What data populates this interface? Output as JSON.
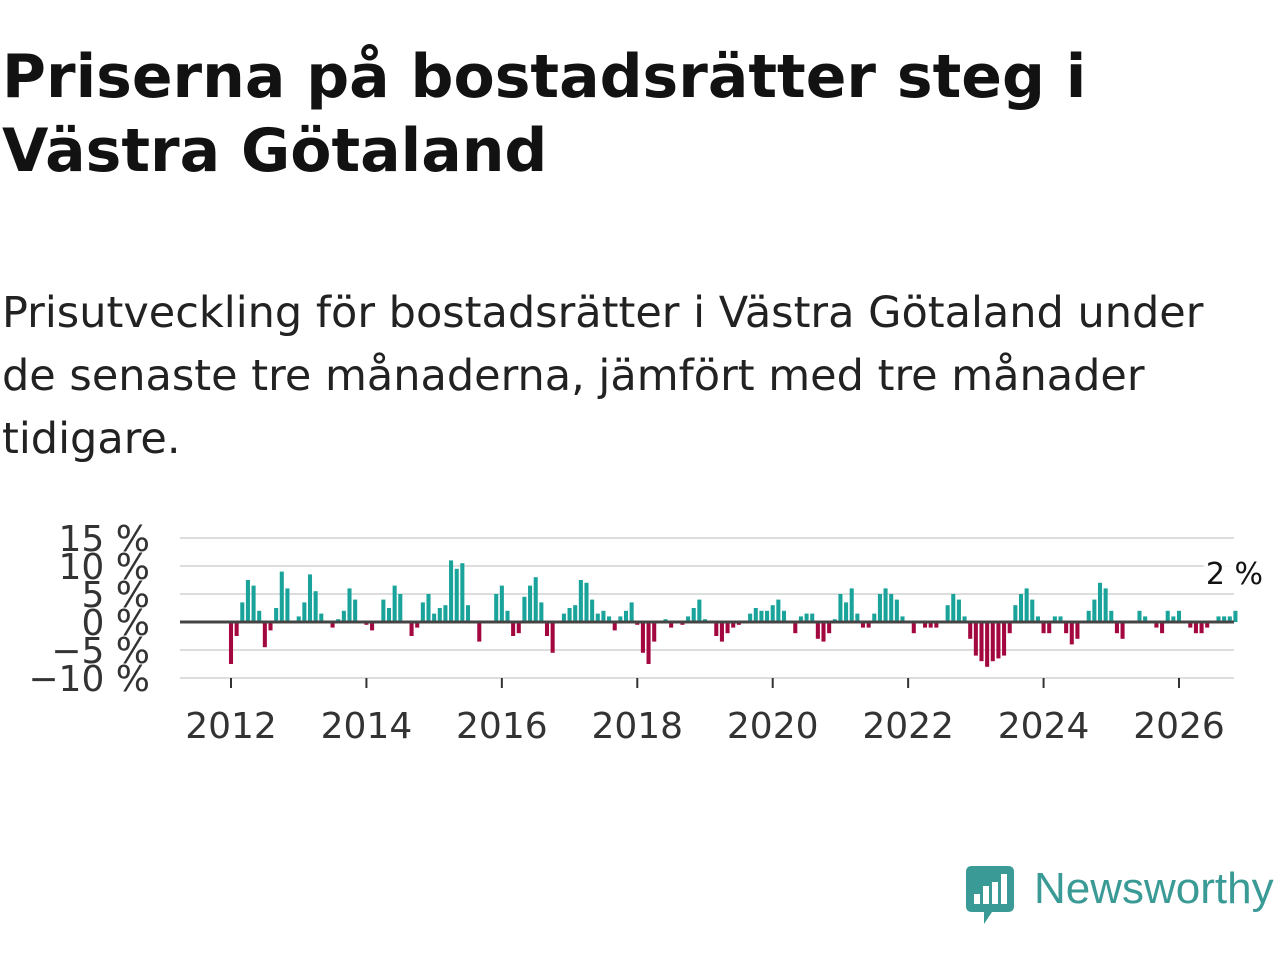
{
  "title": "Priserna på bostadsrätter steg i Västra Götaland",
  "subtitle": "Prisutveckling för bostadsrätter i Västra Götaland under de senaste tre månaderna, jämfört med tre månader tidigare.",
  "brand": {
    "name": "Newsworthy",
    "icon": "newsworthy-logo-icon"
  },
  "colors": {
    "positive": "#1aa39a",
    "negative": "#a3073f",
    "grid": "#dddddd",
    "baseline": "#444444",
    "axis_text": "#333333"
  },
  "chart_data": {
    "type": "bar",
    "title": "",
    "xlabel": "",
    "ylabel": "",
    "x_start": {
      "year": 2012,
      "month": 1
    },
    "x_ticks": [
      "2012",
      "2014",
      "2016",
      "2018",
      "2020",
      "2022",
      "2024",
      "2026"
    ],
    "y_ticks": [
      "15 %",
      "10 %",
      "5 %",
      "0 %",
      "−5 %",
      "−10 %"
    ],
    "y_tick_values": [
      15,
      10,
      5,
      0,
      -5,
      -10
    ],
    "ylim": [
      -10,
      15
    ],
    "last_label": "2 %",
    "values": [
      -7.5,
      -2.5,
      3.5,
      7.5,
      6.5,
      2.0,
      -4.5,
      -1.5,
      2.5,
      9.0,
      6.0,
      0.0,
      1.0,
      3.5,
      8.5,
      5.5,
      1.5,
      0.0,
      -1.0,
      0.5,
      2.0,
      6.0,
      4.0,
      0.0,
      -0.5,
      -1.5,
      0.0,
      4.0,
      2.5,
      6.5,
      5.0,
      0.0,
      -2.5,
      -1.0,
      3.5,
      5.0,
      1.5,
      2.5,
      3.0,
      11.0,
      9.5,
      10.5,
      3.0,
      0.0,
      -3.5,
      0.0,
      0.0,
      5.0,
      6.5,
      2.0,
      -2.5,
      -2.0,
      4.5,
      6.5,
      8.0,
      3.5,
      -2.5,
      -5.5,
      0.0,
      1.5,
      2.5,
      3.0,
      7.5,
      7.0,
      4.0,
      1.5,
      2.0,
      1.0,
      -1.5,
      1.0,
      2.0,
      3.5,
      -0.5,
      -5.5,
      -7.5,
      -3.5,
      0.0,
      0.5,
      -1.0,
      0.0,
      -0.5,
      1.0,
      2.5,
      4.0,
      0.5,
      0.0,
      -2.5,
      -3.5,
      -2.0,
      -1.0,
      -0.5,
      0.0,
      1.5,
      2.5,
      2.0,
      2.0,
      3.0,
      4.0,
      2.0,
      0.0,
      -2.0,
      1.0,
      1.5,
      1.5,
      -3.0,
      -3.5,
      -2.0,
      0.5,
      5.0,
      3.5,
      6.0,
      1.5,
      -1.0,
      -1.0,
      1.5,
      5.0,
      6.0,
      5.0,
      4.0,
      1.0,
      0.0,
      -2.0,
      0.0,
      -1.0,
      -1.0,
      -1.0,
      0.0,
      3.0,
      5.0,
      4.0,
      1.0,
      -3.0,
      -6.0,
      -7.0,
      -8.0,
      -7.0,
      -6.5,
      -6.0,
      -2.0,
      3.0,
      5.0,
      6.0,
      4.0,
      1.0,
      -2.0,
      -2.0,
      1.0,
      1.0,
      -2.0,
      -4.0,
      -3.0,
      0.0,
      2.0,
      4.0,
      7.0,
      6.0,
      2.0,
      -2.0,
      -3.0,
      0.0,
      0.0,
      2.0,
      1.0,
      0.0,
      -1.0,
      -2.0,
      2.0,
      1.0,
      2.0,
      0.0,
      -1.0,
      -2.0,
      -2.0,
      -1.0,
      0.0,
      1.0,
      1.0,
      1.0,
      2.0
    ]
  }
}
